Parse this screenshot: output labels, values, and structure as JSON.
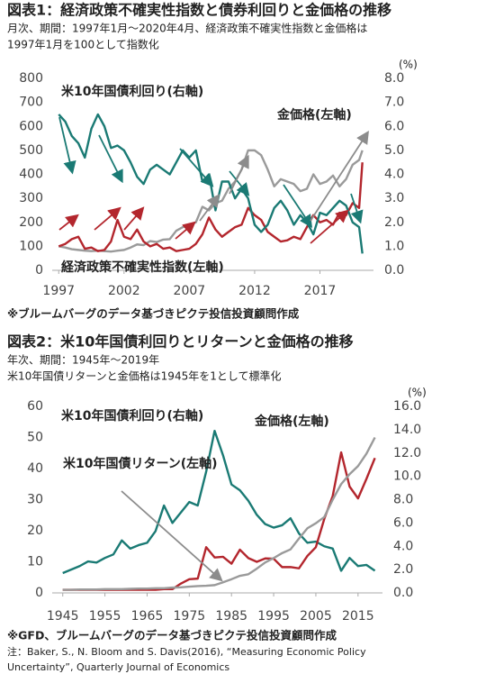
{
  "chart_data": [
    {
      "type": "line",
      "title": "図表1：経済政策不確実性指数と債券利回りと金価格の推移",
      "subtitle": [
        "月次、期間：1997年1月～2020年4月、経済政策不確実性指数と金価格は",
        "1997年1月を100として指数化"
      ],
      "source": "※ブルームバーグのデータ基づきピクテ投信投資顧問作成",
      "x": [
        1997,
        1997.5,
        1998,
        1998.5,
        1999,
        1999.5,
        2000,
        2000.5,
        2001,
        2001.5,
        2002,
        2002.5,
        2003,
        2003.5,
        2004,
        2004.5,
        2005,
        2005.5,
        2006,
        2006.5,
        2007,
        2007.5,
        2008,
        2008.5,
        2009,
        2009.5,
        2010,
        2010.5,
        2011,
        2011.5,
        2012,
        2012.5,
        2013,
        2013.5,
        2014,
        2014.5,
        2015,
        2015.5,
        2016,
        2016.5,
        2017,
        2017.5,
        2018,
        2018.5,
        2019,
        2019.5,
        2020,
        2020.25
      ],
      "xlim": [
        1996.5,
        2021.1
      ],
      "xticks": [
        1997,
        2002,
        2007,
        2012,
        2017
      ],
      "ylim": [
        0,
        800
      ],
      "yticks": [
        0,
        100,
        200,
        300,
        400,
        500,
        600,
        700,
        800
      ],
      "y2lim": [
        0,
        8
      ],
      "y2ticks": [
        {
          "value": 0,
          "label": "0.0"
        },
        {
          "value": 1,
          "label": "1.0"
        },
        {
          "value": 2,
          "label": "2.0"
        },
        {
          "value": 3,
          "label": "3.0"
        },
        {
          "value": 4,
          "label": "4.0"
        },
        {
          "value": 5,
          "label": "5.0"
        },
        {
          "value": 6,
          "label": "6.0"
        },
        {
          "value": 7,
          "label": "7.0"
        },
        {
          "value": 8,
          "label": "8.0"
        }
      ],
      "y2label": "(%)",
      "series": [
        {
          "name": "金価格(左軸)",
          "color": "#9a9a9a",
          "axis": "y",
          "values": [
            100,
            95,
            88,
            85,
            82,
            80,
            82,
            80,
            78,
            82,
            85,
            95,
            108,
            105,
            122,
            118,
            128,
            130,
            165,
            180,
            190,
            200,
            265,
            250,
            280,
            290,
            340,
            370,
            420,
            500,
            500,
            480,
            420,
            350,
            380,
            370,
            360,
            330,
            340,
            400,
            360,
            370,
            395,
            350,
            380,
            440,
            460,
            500
          ]
        },
        {
          "name": "経済政策不確実性指数(左軸)",
          "color": "#b3262d",
          "axis": "y",
          "values": [
            100,
            110,
            130,
            140,
            90,
            95,
            80,
            85,
            120,
            210,
            140,
            130,
            170,
            120,
            100,
            110,
            90,
            95,
            80,
            85,
            90,
            110,
            150,
            220,
            170,
            140,
            160,
            180,
            190,
            260,
            230,
            210,
            160,
            140,
            120,
            125,
            140,
            130,
            180,
            230,
            200,
            210,
            190,
            240,
            230,
            280,
            260,
            450
          ]
        },
        {
          "name": "米10年国債利回り(右軸)",
          "color": "#1a7a74",
          "axis": "y2",
          "values": [
            6.5,
            6.2,
            5.6,
            5.3,
            4.7,
            5.9,
            6.5,
            6.0,
            5.1,
            5.2,
            5.0,
            4.5,
            3.9,
            3.6,
            4.2,
            4.4,
            4.2,
            4.0,
            4.5,
            5.0,
            4.7,
            5.0,
            3.7,
            4.0,
            2.5,
            3.7,
            3.7,
            3.0,
            3.4,
            3.0,
            1.9,
            1.6,
            1.9,
            2.6,
            2.9,
            2.5,
            1.9,
            2.3,
            2.0,
            1.5,
            2.4,
            2.3,
            2.6,
            2.9,
            2.7,
            2.0,
            1.8,
            0.7
          ]
        }
      ]
    },
    {
      "type": "line",
      "title": "図表2：米10年国債利回りとリターンと金価格の推移",
      "subtitle": [
        "年次、期間：1945年～2019年",
        "米10年国債リターンと金価格は1945年を1として標準化"
      ],
      "source": "※GFD、ブルームバーグのデータ基づきピクテ投信投資顧問作成",
      "note": [
        "注：Baker, S., N. Bloom and S. Davis(2016), “Measuring Economic Policy",
        "Uncertainty”, Quarterly Journal of Economics"
      ],
      "x": [
        1945,
        1947,
        1949,
        1951,
        1953,
        1955,
        1957,
        1959,
        1961,
        1963,
        1965,
        1967,
        1969,
        1971,
        1973,
        1975,
        1977,
        1979,
        1981,
        1983,
        1985,
        1987,
        1989,
        1991,
        1993,
        1995,
        1997,
        1999,
        2001,
        2003,
        2005,
        2007,
        2009,
        2011,
        2013,
        2015,
        2017,
        2019
      ],
      "xlim": [
        1942.5,
        2020.8
      ],
      "xticks": [
        1945,
        1955,
        1965,
        1975,
        1985,
        1995,
        2005,
        2015
      ],
      "ylim": [
        0,
        60
      ],
      "yticks": [
        0,
        10,
        20,
        30,
        40,
        50,
        60
      ],
      "y2lim": [
        0,
        16
      ],
      "y2ticks": [
        {
          "value": 0,
          "label": "0.0"
        },
        {
          "value": 2,
          "label": "2.0"
        },
        {
          "value": 4,
          "label": "4.0"
        },
        {
          "value": 6,
          "label": "6.0"
        },
        {
          "value": 8,
          "label": "8.0"
        },
        {
          "value": 10,
          "label": "10.0"
        },
        {
          "value": 12,
          "label": "12.0"
        },
        {
          "value": 14,
          "label": "14.0"
        },
        {
          "value": 16,
          "label": "16.0"
        }
      ],
      "y2label": "(%)",
      "series": [
        {
          "name": "米10年国債利回り(右軸)",
          "color": "#1a7a74",
          "axis": "y2",
          "values": [
            1.7,
            2.0,
            2.3,
            2.7,
            2.6,
            3.0,
            3.3,
            4.5,
            3.8,
            4.1,
            4.3,
            5.3,
            7.5,
            6.0,
            6.9,
            7.8,
            7.5,
            10.4,
            13.9,
            11.8,
            9.3,
            8.8,
            7.9,
            6.7,
            5.9,
            5.6,
            5.8,
            6.4,
            5.1,
            4.3,
            4.4,
            4.0,
            3.8,
            1.9,
            3.0,
            2.3,
            2.4,
            1.9
          ]
        },
        {
          "name": "金価格(左軸)",
          "color": "#b3262d",
          "axis": "y",
          "values": [
            1,
            1,
            1,
            1,
            1,
            1,
            1,
            1,
            1,
            1,
            1,
            1,
            1.2,
            1.2,
            3.0,
            4.4,
            4.6,
            14.7,
            11.4,
            11.6,
            9.4,
            13.9,
            11.2,
            10.0,
            11.1,
            11.0,
            8.3,
            8.3,
            7.9,
            11.9,
            14.7,
            23.8,
            31.2,
            45.2,
            34.2,
            30.4,
            36.7,
            43.4
          ]
        },
        {
          "name": "米10年国債リターン(左軸)",
          "color": "#9a9a9a",
          "axis": "y",
          "values": [
            1.0,
            1.0,
            1.1,
            1.1,
            1.1,
            1.2,
            1.2,
            1.2,
            1.3,
            1.4,
            1.4,
            1.5,
            1.5,
            1.7,
            1.8,
            2.0,
            2.2,
            2.3,
            2.5,
            3.4,
            4.4,
            5.5,
            6.0,
            7.8,
            9.8,
            11.2,
            12.8,
            14.0,
            17.5,
            20.8,
            22.4,
            24.4,
            30.0,
            35.0,
            38.2,
            40.8,
            44.8,
            50.0
          ]
        }
      ]
    }
  ]
}
